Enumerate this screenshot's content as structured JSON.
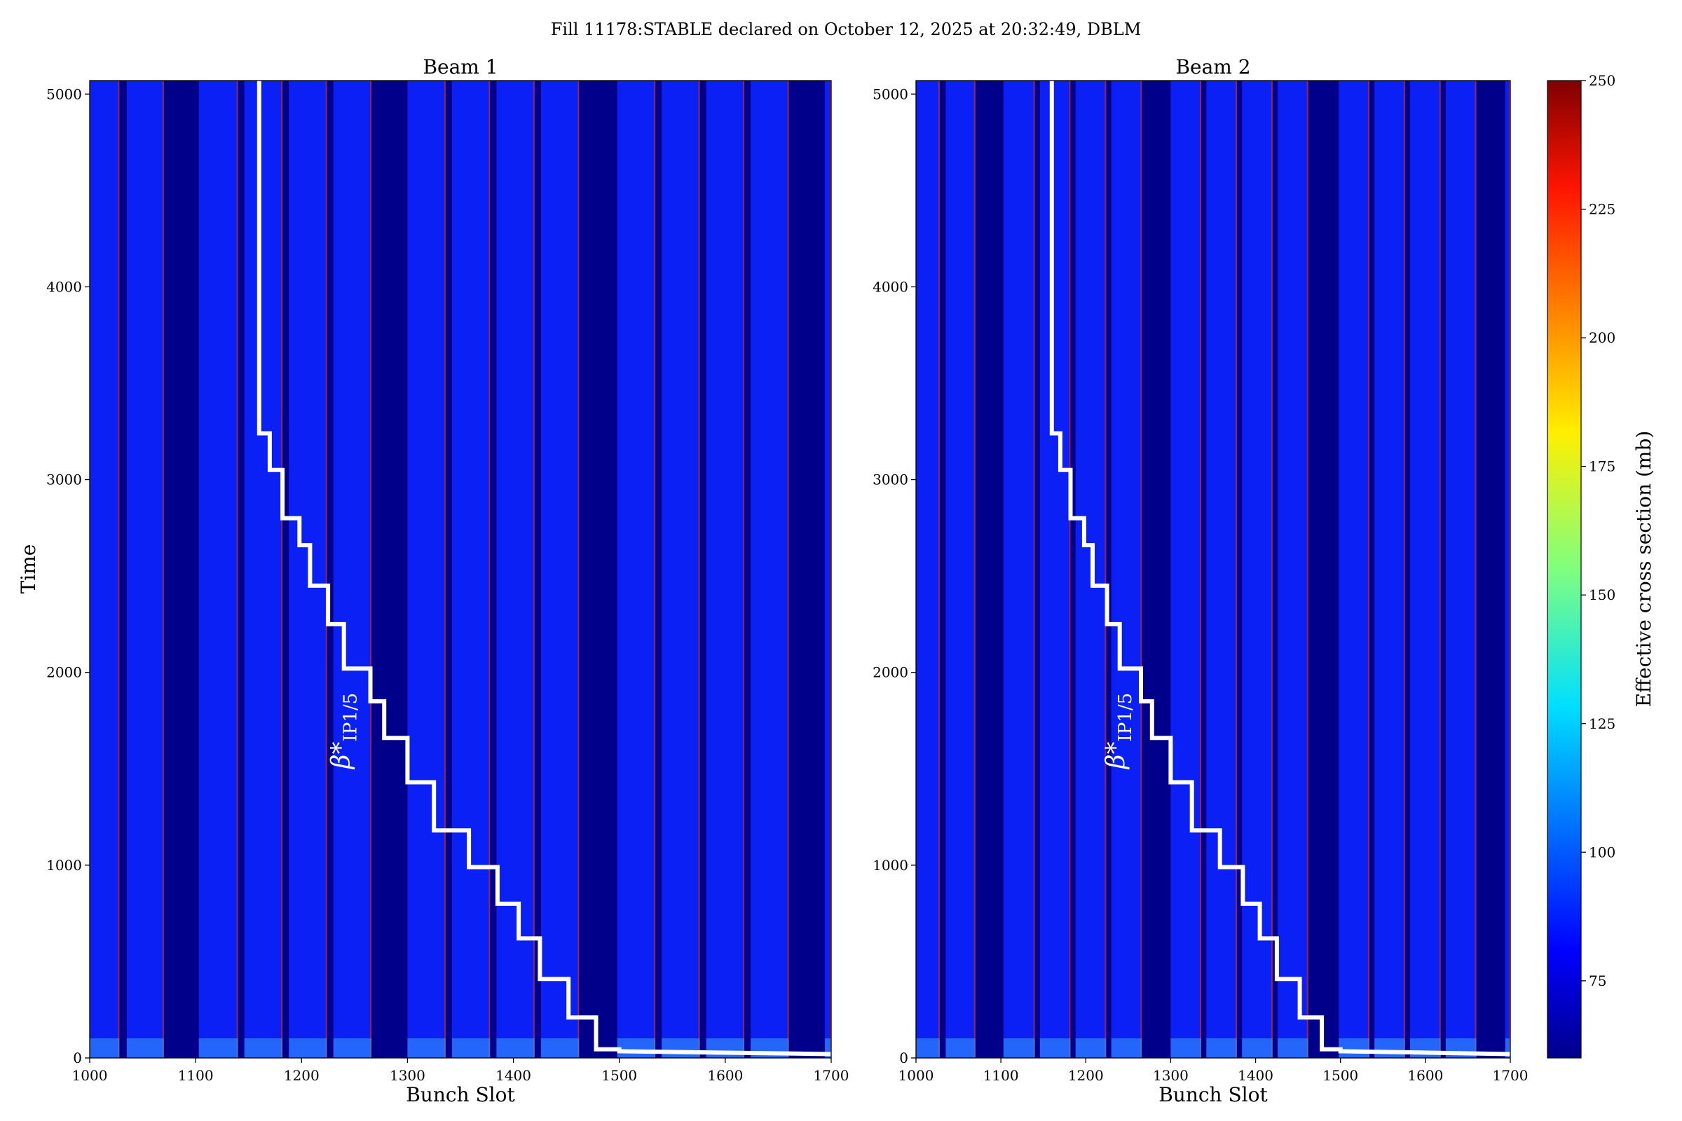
{
  "suptitle": "Fill 11178:STABLE declared on October 12, 2025 at 20:32:49, DBLM",
  "chart_data": {
    "type": "heatmap",
    "xlabel": "Bunch Slot",
    "ylabel": "Time",
    "xlim": [
      1000,
      1700
    ],
    "ylim": [
      0,
      5070
    ],
    "xticks": [
      "1000",
      "1100",
      "1200",
      "1300",
      "1400",
      "1500",
      "1600",
      "1700"
    ],
    "yticks": [
      "0",
      "1000",
      "2000",
      "3000",
      "4000",
      "5000"
    ],
    "colorbar": {
      "label": "Effective cross section (mb)",
      "range": [
        60,
        250
      ],
      "ticks": [
        "75",
        "100",
        "125",
        "150",
        "175",
        "200",
        "225",
        "250"
      ],
      "colormap": "jet"
    },
    "bunch_trains": [
      [
        1000,
        1028
      ],
      [
        1035,
        1070
      ],
      [
        1103,
        1140
      ],
      [
        1146,
        1182
      ],
      [
        1188,
        1224
      ],
      [
        1230,
        1266
      ],
      [
        1300,
        1336
      ],
      [
        1342,
        1378
      ],
      [
        1384,
        1420
      ],
      [
        1426,
        1462
      ],
      [
        1498,
        1534
      ],
      [
        1540,
        1576
      ],
      [
        1582,
        1618
      ],
      [
        1624,
        1660
      ],
      [
        1694,
        1700
      ]
    ],
    "train_color": "#0a20f5",
    "gap_color": "#00008b",
    "beta_star_step": {
      "label": "β*",
      "label_subscript": "IP1/5",
      "color": "#ffffff",
      "points": [
        [
          1160,
          5070
        ],
        [
          1160,
          3240
        ],
        [
          1170,
          3240
        ],
        [
          1170,
          3050
        ],
        [
          1182,
          3050
        ],
        [
          1182,
          2800
        ],
        [
          1198,
          2800
        ],
        [
          1198,
          2660
        ],
        [
          1208,
          2660
        ],
        [
          1208,
          2450
        ],
        [
          1225,
          2450
        ],
        [
          1225,
          2250
        ],
        [
          1240,
          2250
        ],
        [
          1240,
          2020
        ],
        [
          1265,
          2020
        ],
        [
          1265,
          1850
        ],
        [
          1278,
          1850
        ],
        [
          1278,
          1660
        ],
        [
          1300,
          1660
        ],
        [
          1300,
          1430
        ],
        [
          1325,
          1430
        ],
        [
          1325,
          1180
        ],
        [
          1358,
          1180
        ],
        [
          1358,
          990
        ],
        [
          1385,
          990
        ],
        [
          1385,
          800
        ],
        [
          1405,
          800
        ],
        [
          1405,
          620
        ],
        [
          1425,
          620
        ],
        [
          1425,
          410
        ],
        [
          1452,
          410
        ],
        [
          1452,
          210
        ],
        [
          1478,
          210
        ],
        [
          1478,
          45
        ],
        [
          1500,
          45
        ],
        [
          1500,
          35
        ],
        [
          1700,
          20
        ]
      ]
    },
    "panels": [
      {
        "title": "Beam 1"
      },
      {
        "title": "Beam 2"
      }
    ]
  }
}
